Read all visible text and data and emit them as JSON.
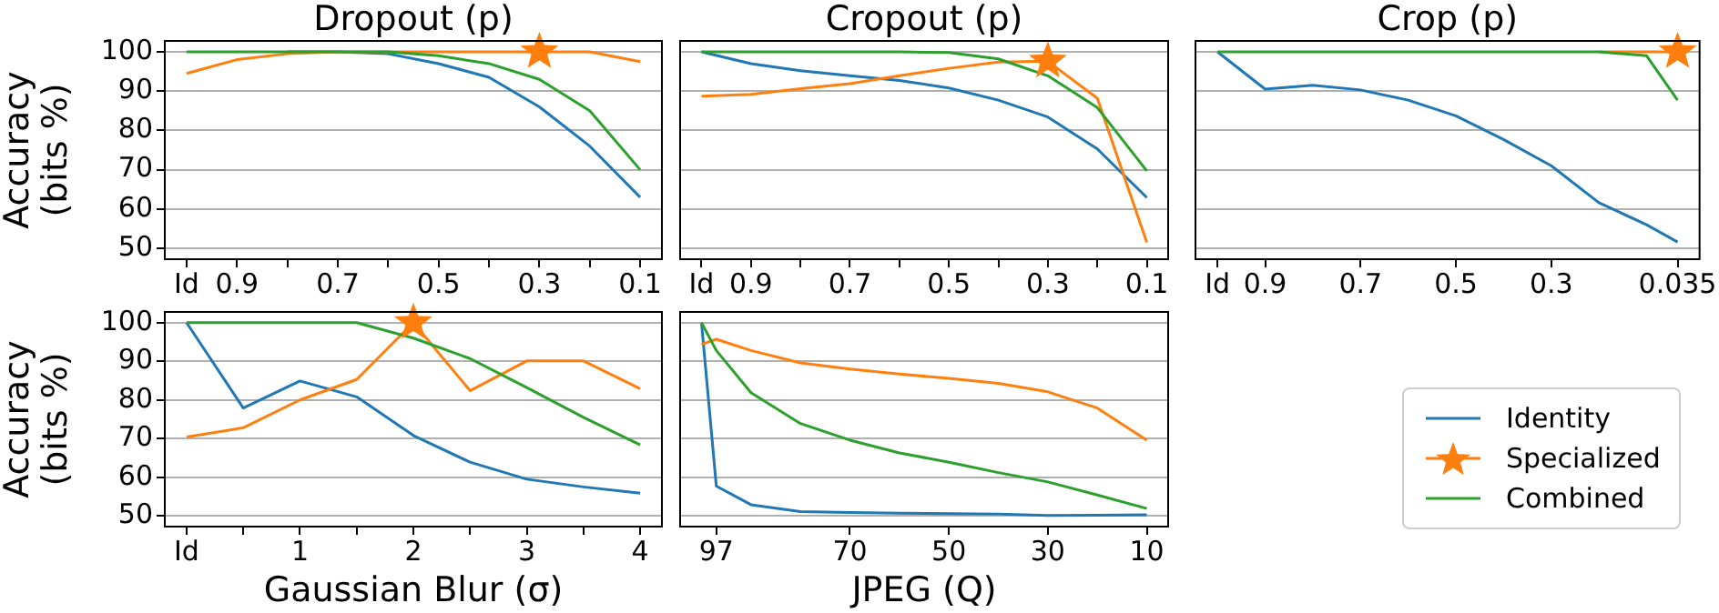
{
  "chart_data": [
    {
      "type": "line",
      "title": "Dropout (p)",
      "ylabel": "Accuracy\n(bits %)",
      "x": [
        1,
        0.9,
        0.8,
        0.7,
        0.6,
        0.5,
        0.4,
        0.3,
        0.2,
        0.1
      ],
      "xlim": [
        1.045,
        0.055
      ],
      "xticks": [
        {
          "value": 1,
          "label": "Id"
        },
        0.9,
        {
          "value": 0.8,
          "label": null
        },
        0.7,
        {
          "value": 0.6,
          "label": null
        },
        0.5,
        {
          "value": 0.4,
          "label": null
        },
        0.3,
        {
          "value": 0.2,
          "label": null
        },
        0.1
      ],
      "ylim": [
        47,
        103
      ],
      "yticks": [
        50,
        60,
        70,
        80,
        90,
        100
      ],
      "grid": "y",
      "legend": "bottom right",
      "series": [
        {
          "name": "Identity",
          "color": "#1f77b4",
          "values": [
            null,
            null,
            100,
            100,
            99.5,
            97,
            93.5,
            86,
            76,
            63
          ]
        },
        {
          "name": "Specialized",
          "color": "#ff7f0e",
          "values": [
            94.5,
            98,
            99.5,
            100,
            100,
            100,
            100,
            100,
            100,
            97.5
          ]
        },
        {
          "name": "Combined",
          "color": "#2ca02c",
          "values": [
            100,
            100,
            100,
            100,
            100,
            99,
            97,
            93,
            85,
            70
          ]
        },
        {
          "type": "scatter",
          "color": "#ff7f0e",
          "marker": "star",
          "x": [
            0.3
          ],
          "values": [
            100
          ]
        }
      ]
    },
    {
      "type": "line",
      "title": "Cropout (p)",
      "x": [
        1,
        0.9,
        0.8,
        0.7,
        0.6,
        0.5,
        0.4,
        0.3,
        0.2,
        0.1
      ],
      "xlim": [
        1.045,
        0.055
      ],
      "xticks": [
        {
          "value": 1,
          "label": "Id"
        },
        0.9,
        {
          "value": 0.8,
          "label": null
        },
        0.7,
        {
          "value": 0.6,
          "label": null
        },
        0.5,
        {
          "value": 0.4,
          "label": null
        },
        0.3,
        {
          "value": 0.2,
          "label": null
        },
        0.1
      ],
      "ylim": [
        47,
        103
      ],
      "yticks": [
        50,
        60,
        70,
        80,
        90,
        100
      ],
      "grid": "y",
      "tick_labels": "x",
      "series": [
        {
          "color": "#1f77b4",
          "values": [
            100,
            97,
            95.2,
            93.9,
            92.7,
            90.8,
            87.7,
            83.4,
            75.3,
            62.9
          ]
        },
        {
          "color": "#ff7f0e",
          "values": [
            88.7,
            89.2,
            90.6,
            91.9,
            93.9,
            95.8,
            97.4,
            97.6,
            88.2,
            51.5
          ]
        },
        {
          "color": "#2ca02c",
          "values": [
            100,
            100,
            100,
            100,
            100,
            99.8,
            98.2,
            93.9,
            85.8,
            69.7
          ]
        },
        {
          "type": "scatter",
          "color": "#ff7f0e",
          "marker": "star",
          "x": [
            0.3
          ],
          "values": [
            97.6
          ]
        }
      ]
    },
    {
      "type": "line",
      "title": "Crop (p)",
      "x": [
        1,
        0.9,
        0.8,
        0.7,
        0.6,
        0.5,
        0.4,
        0.3,
        0.2,
        0.1,
        0.035
      ],
      "xlim": [
        1.048,
        -0.013
      ],
      "xticks": [
        {
          "value": 1,
          "label": "Id"
        },
        0.9,
        0.7,
        0.5,
        0.3,
        0.035
      ],
      "ylim": [
        47,
        103
      ],
      "yticks": [
        50,
        60,
        70,
        80,
        90,
        100
      ],
      "grid": "y",
      "tick_labels": "x",
      "series": [
        {
          "color": "#1f77b4",
          "values": [
            100,
            90.5,
            91.5,
            90.3,
            87.7,
            83.7,
            77.7,
            71,
            61.6,
            56,
            51.6
          ]
        },
        {
          "color": "#ff7f0e",
          "values": [
            null,
            null,
            null,
            null,
            null,
            null,
            null,
            null,
            100,
            100,
            100
          ]
        },
        {
          "color": "#2ca02c",
          "values": [
            100,
            100,
            100,
            100,
            100,
            100,
            100,
            100,
            100,
            99,
            87.7
          ]
        },
        {
          "type": "scatter",
          "color": "#ff7f0e",
          "marker": "star",
          "x": [
            0.035
          ],
          "values": [
            100
          ]
        }
      ]
    },
    {
      "type": "line",
      "xlabel": "Gaussian Blur (σ)",
      "ylabel": "Accuracy\n(bits %)",
      "x": [
        0,
        0.5,
        1,
        1.5,
        2,
        2.5,
        3,
        3.5,
        4
      ],
      "xlim": [
        -0.2,
        4.2
      ],
      "xticks": [
        {
          "value": 0,
          "label": "Id"
        },
        {
          "value": 0.5,
          "label": null
        },
        1,
        {
          "value": 1.5,
          "label": null
        },
        2,
        {
          "value": 2.5,
          "label": null
        },
        3,
        {
          "value": 3.5,
          "label": null
        },
        4
      ],
      "ylim": [
        47,
        103
      ],
      "yticks": [
        50,
        60,
        70,
        80,
        90,
        100
      ],
      "grid": "y",
      "series": [
        {
          "color": "#1f77b4",
          "values": [
            100,
            77.9,
            84.9,
            80.8,
            70.8,
            63.9,
            59.5,
            57.5,
            55.9
          ]
        },
        {
          "color": "#ff7f0e",
          "values": [
            70.4,
            72.8,
            80,
            85.3,
            100,
            82.4,
            90.1,
            90.1,
            82.9
          ]
        },
        {
          "color": "#2ca02c",
          "values": [
            100,
            100,
            100,
            100,
            96,
            90.7,
            83.2,
            75.5,
            68.4
          ]
        },
        {
          "type": "scatter",
          "color": "#ff7f0e",
          "marker": "star",
          "x": [
            2
          ],
          "values": [
            100
          ]
        }
      ]
    },
    {
      "type": "line",
      "xlabel": "JPEG (Q)",
      "x": [
        100,
        97,
        90,
        80,
        70,
        60,
        50,
        40,
        30,
        20,
        10
      ],
      "xlim": [
        104.5,
        5.5
      ],
      "xticks": [
        97,
        70,
        50,
        30,
        10
      ],
      "ylim": [
        47,
        103
      ],
      "yticks": [
        50,
        60,
        70,
        80,
        90,
        100
      ],
      "grid": "y",
      "tick_labels": "x",
      "series": [
        {
          "color": "#1f77b4",
          "values": [
            100,
            57.7,
            52.9,
            51.1,
            50.9,
            50.7,
            50.6,
            50.5,
            50.1,
            50.2,
            50.3
          ]
        },
        {
          "color": "#ff7f0e",
          "values": [
            94.4,
            95.7,
            92.8,
            89.6,
            88,
            86.7,
            85.6,
            84.3,
            82.1,
            77.9,
            69.6
          ]
        },
        {
          "color": "#2ca02c",
          "values": [
            100,
            92.8,
            81.9,
            73.9,
            69.6,
            66.3,
            63.9,
            61.2,
            58.8,
            55.4,
            51.9
          ]
        }
      ]
    }
  ]
}
